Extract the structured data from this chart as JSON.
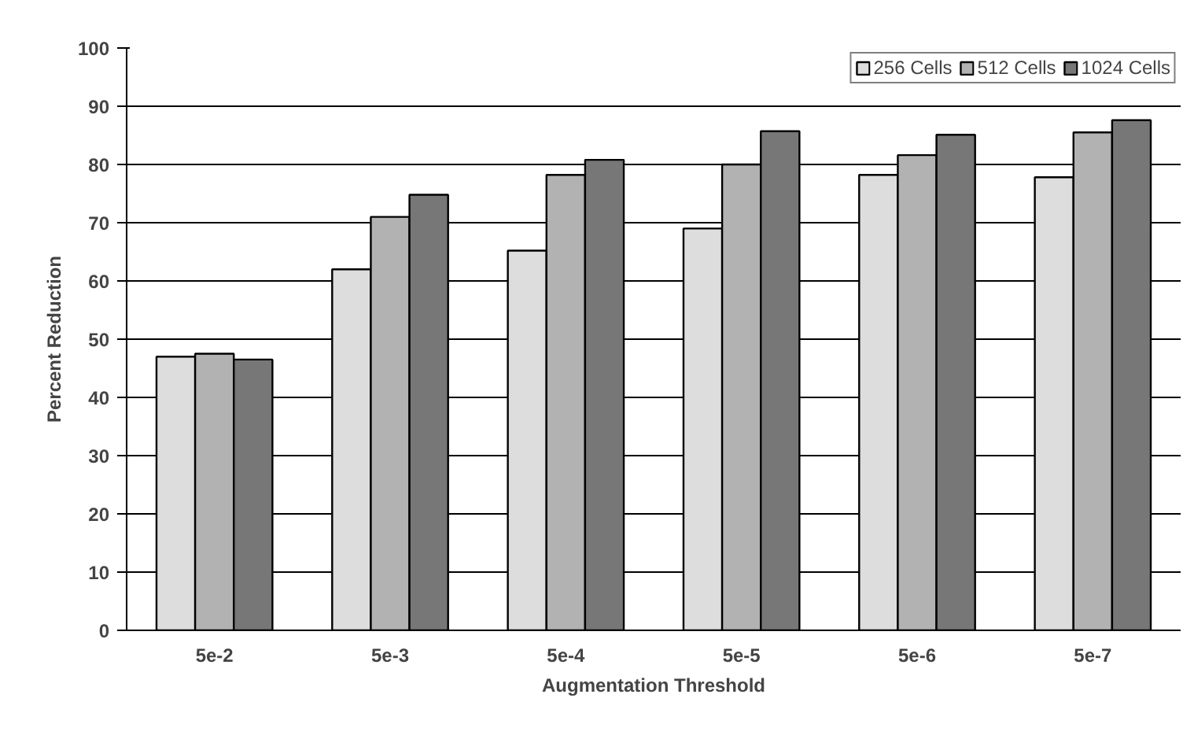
{
  "chart_data": {
    "type": "bar",
    "xlabel": "Augmentation Threshold",
    "ylabel": "Percent Reduction",
    "categories": [
      "5e-2",
      "5e-3",
      "5e-4",
      "5e-5",
      "5e-6",
      "5e-7"
    ],
    "series": [
      {
        "name": "256 Cells",
        "color": "#dddddd",
        "values": [
          47.0,
          62.0,
          65.2,
          69.0,
          78.2,
          77.8
        ]
      },
      {
        "name": "512 Cells",
        "color": "#b2b2b2",
        "values": [
          47.5,
          71.0,
          78.2,
          80.0,
          81.6,
          85.5
        ]
      },
      {
        "name": "1024 Cells",
        "color": "#777777",
        "values": [
          46.5,
          74.8,
          80.8,
          85.7,
          85.1,
          87.6
        ]
      }
    ],
    "ylim": [
      0,
      100
    ],
    "yticks": [
      0,
      10,
      20,
      30,
      40,
      50,
      60,
      70,
      80,
      90,
      100
    ],
    "grid": "y",
    "legend": "top right"
  }
}
